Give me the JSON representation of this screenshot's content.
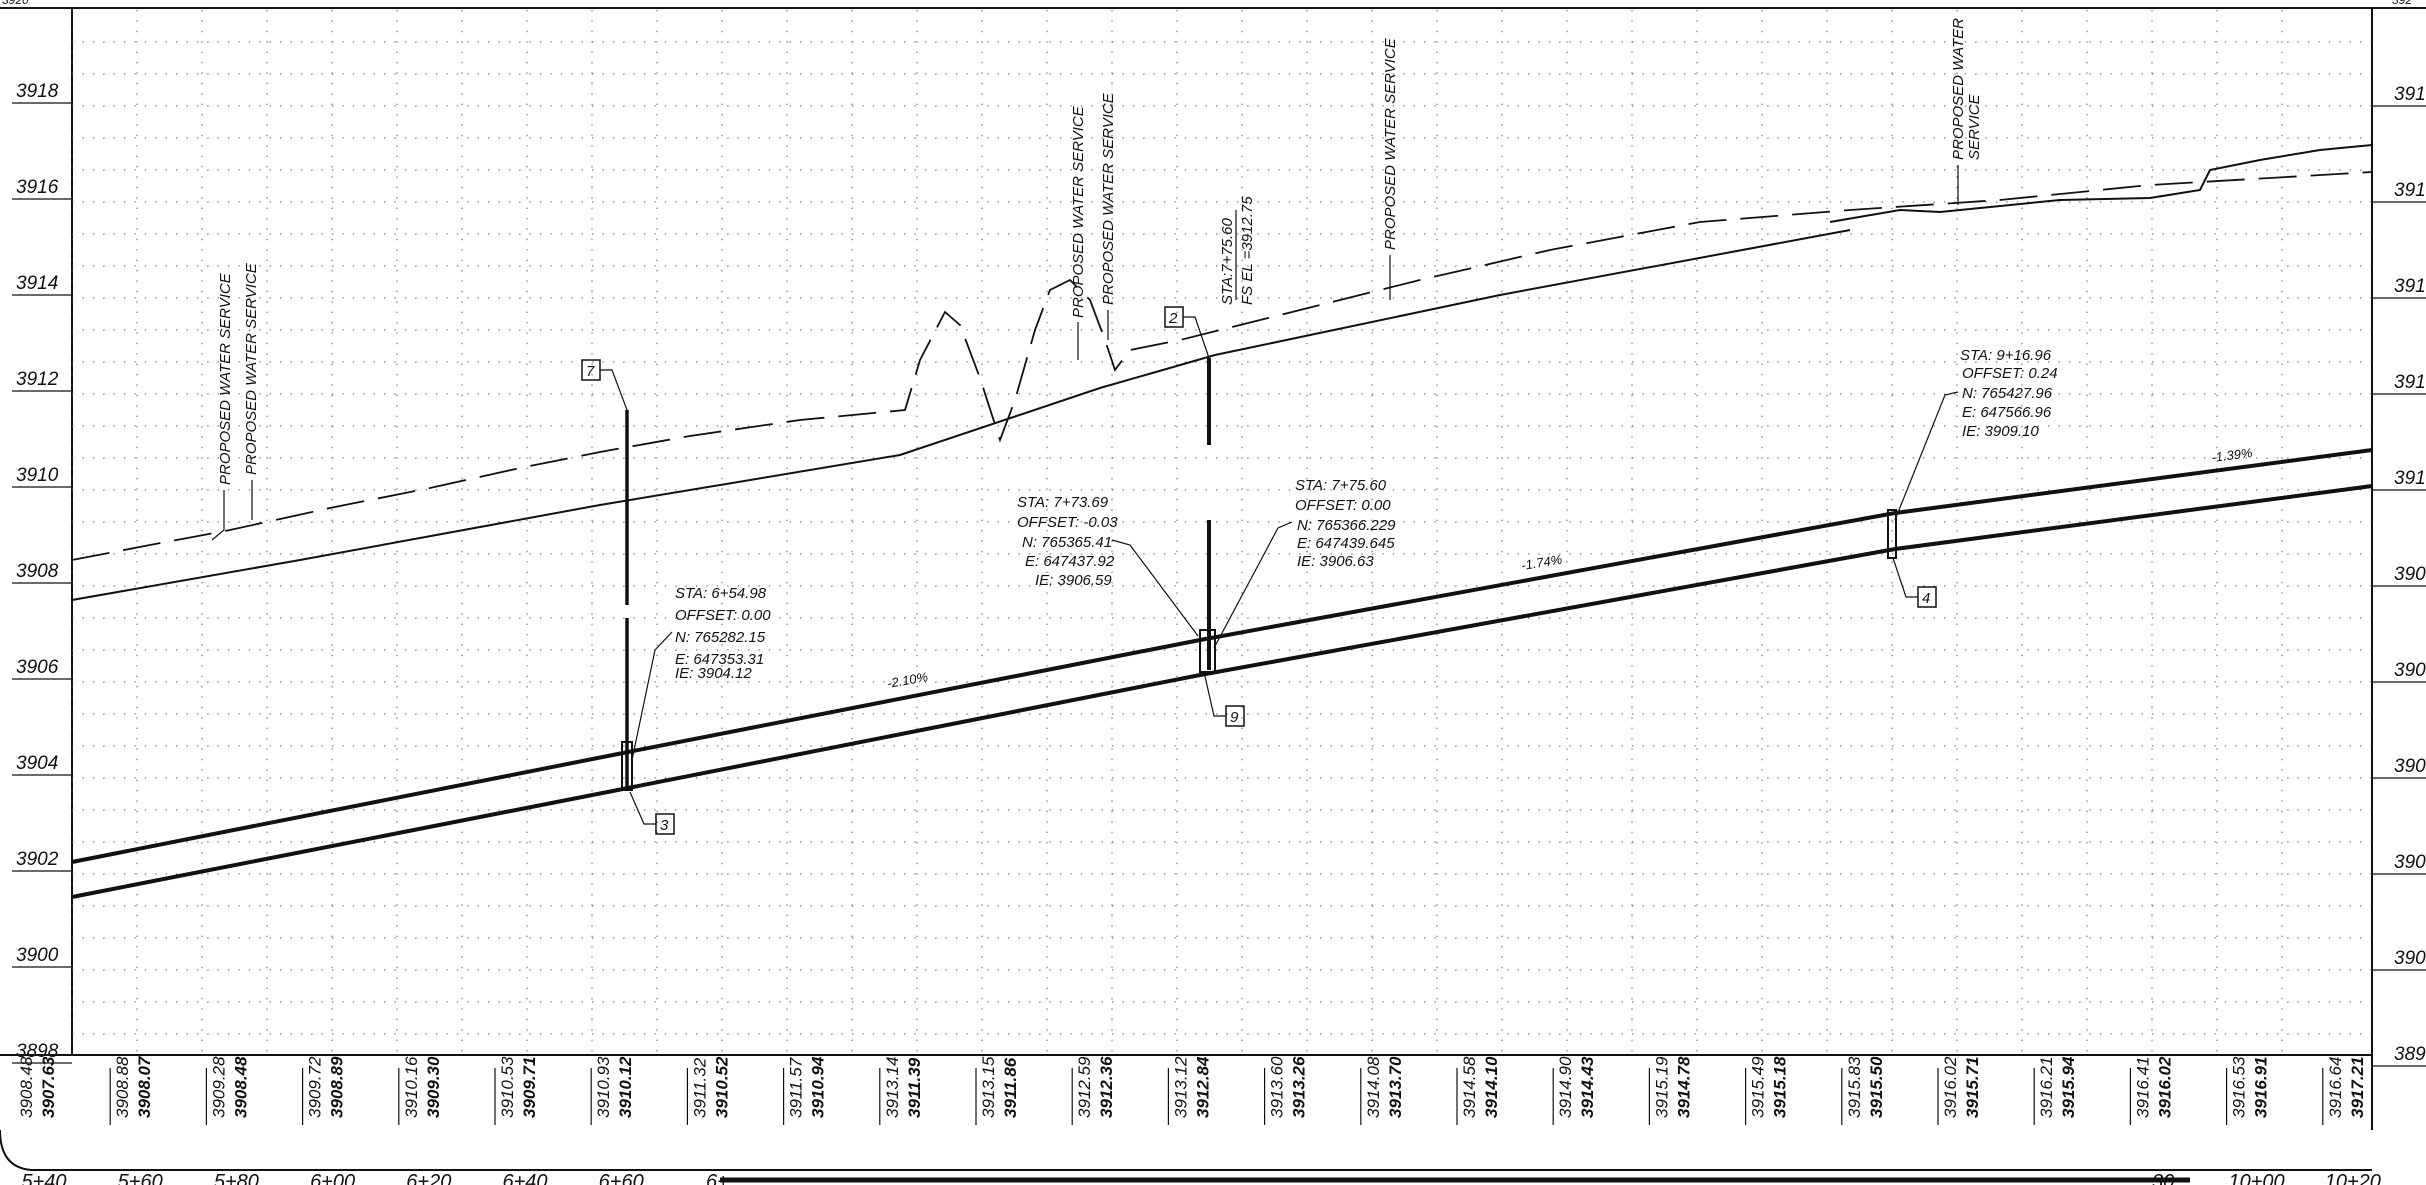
{
  "sheet": {
    "left_elevations": [
      "3918",
      "3916",
      "3914",
      "3912",
      "3910",
      "3908",
      "3906",
      "3904",
      "3902",
      "3900",
      "3898"
    ],
    "right_elevations": [
      "391",
      "391",
      "391",
      "391",
      "391",
      "390",
      "390",
      "390",
      "390",
      "390",
      "389"
    ],
    "stations": [
      "5+40",
      "5+60",
      "5+80",
      "6+00",
      "6+20",
      "6+40",
      "6+60",
      "6+",
      "",
      "",
      "",
      "",
      "",
      "",
      "",
      "",
      "",
      "",
      "",
      "",
      "",
      "",
      ".30",
      "10+00",
      "10+20"
    ]
  },
  "profile_table": [
    {
      "existing": "3908.48",
      "proposed": "3907.63"
    },
    {
      "existing": "3908.88",
      "proposed": "3908.07"
    },
    {
      "existing": "3909.28",
      "proposed": "3908.48"
    },
    {
      "existing": "3909.72",
      "proposed": "3908.89"
    },
    {
      "existing": "3910.16",
      "proposed": "3909.30"
    },
    {
      "existing": "3910.53",
      "proposed": "3909.71"
    },
    {
      "existing": "3910.93",
      "proposed": "3910.12"
    },
    {
      "existing": "3911.32",
      "proposed": "3910.52"
    },
    {
      "existing": "3911.57",
      "proposed": "3910.94"
    },
    {
      "existing": "3913.14",
      "proposed": "3911.39"
    },
    {
      "existing": "3913.15",
      "proposed": "3911.86"
    },
    {
      "existing": "3912.59",
      "proposed": "3912.36"
    },
    {
      "existing": "3913.12",
      "proposed": "3912.84"
    },
    {
      "existing": "3913.60",
      "proposed": "3913.26"
    },
    {
      "existing": "3914.08",
      "proposed": "3913.70"
    },
    {
      "existing": "3914.58",
      "proposed": "3914.10"
    },
    {
      "existing": "3914.90",
      "proposed": "3914.43"
    },
    {
      "existing": "3915.19",
      "proposed": "3914.78"
    },
    {
      "existing": "3915.49",
      "proposed": "3915.18"
    },
    {
      "existing": "3915.83",
      "proposed": "3915.50"
    },
    {
      "existing": "3916.02",
      "proposed": "3915.71"
    },
    {
      "existing": "3916.21",
      "proposed": "3915.94"
    },
    {
      "existing": "3916.41",
      "proposed": "3916.02"
    },
    {
      "existing": "3916.53",
      "proposed": "3916.91"
    },
    {
      "existing": "3916.64",
      "proposed": "3917.21"
    }
  ],
  "service_labels": [
    "PROPOSED WATER SERVICE",
    "PROPOSED WATER SERVICE",
    "PROPOSED WATER SERVICE",
    "PROPOSED WATER SERVICE",
    "PROPOSED WATER SERVICE"
  ],
  "service_label_twoline": [
    "PROPOSED WATER",
    "SERVICE"
  ],
  "sta_fs_label": [
    "STA:7+75.60",
    "FS EL =3912.75"
  ],
  "callouts": [
    {
      "id": "cA",
      "lines": [
        "STA: 6+54.98",
        "OFFSET: 0.00",
        "N: 765282.15",
        "E: 647353.31",
        "IE: 3904.12"
      ]
    },
    {
      "id": "cB",
      "lines": [
        "STA: 7+73.69",
        "OFFSET: -0.03",
        "N: 765365.41",
        "E: 647437.92",
        "IE: 3906.59"
      ]
    },
    {
      "id": "cC",
      "lines": [
        "STA: 7+75.60",
        "OFFSET: 0.00",
        "N: 765366.229",
        "E: 647439.645",
        "IE: 3906.63"
      ]
    },
    {
      "id": "cD",
      "lines": [
        "STA: 9+16.96",
        "OFFSET: 0.24",
        "N: 765427.96",
        "E: 647566.96",
        "IE: 3909.10"
      ]
    }
  ],
  "grades": [
    "-2.10%",
    "-1.74%",
    "-1.39%"
  ],
  "tags": [
    "7",
    "2",
    "3",
    "9",
    "4"
  ],
  "top_marks": {
    "left": "3920",
    "right": "392"
  }
}
